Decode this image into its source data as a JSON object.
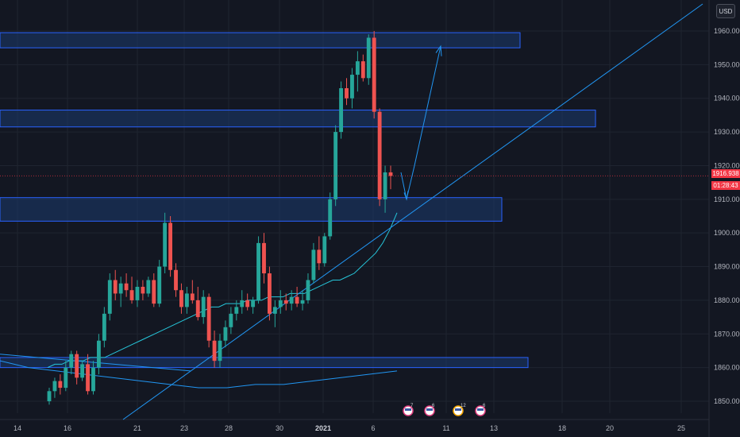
{
  "header": {
    "currency": "USD"
  },
  "price_axis": {
    "current_price": "1916.938",
    "countdown": "01:28:43"
  },
  "colors": {
    "background": "#131722",
    "up": "#26a69a",
    "down": "#ef5350",
    "zone_fill": "#1c3a6e",
    "zone_border": "#2962ff",
    "line": "#2196f3",
    "ma": "#26c6da",
    "price_tag": "#f23645"
  },
  "events": [
    {
      "label": "7",
      "icon": "us-flag-icon"
    },
    {
      "label": "6",
      "icon": "us-flag-icon"
    },
    {
      "label": "12",
      "icon": "us-flag-icon"
    },
    {
      "label": "6",
      "icon": "us-flag-icon"
    }
  ],
  "chart_data": {
    "type": "candlestick",
    "ylim": [
      1845,
      1965
    ],
    "yticks": [
      1850,
      1860,
      1870,
      1880,
      1890,
      1900,
      1910,
      1920,
      1930,
      1940,
      1950,
      1960
    ],
    "ytick_labels": [
      "1850.000",
      "1860.000",
      "1870.000",
      "1880.000",
      "1890.000",
      "1900.000",
      "1910.000",
      "1920.000",
      "1930.000",
      "1940.000",
      "1950.000",
      "1960.000"
    ],
    "xticks": [
      "14",
      "16",
      "21",
      "23",
      "28",
      "30",
      "2021",
      "6",
      "11",
      "13",
      "18",
      "20",
      "25"
    ],
    "grid": true,
    "zones": [
      {
        "y_low": 1955,
        "y_high": 1959.5
      },
      {
        "y_low": 1931.5,
        "y_high": 1936.5
      },
      {
        "y_low": 1903.5,
        "y_high": 1910.5
      },
      {
        "y_low": 1860,
        "y_high": 1863
      }
    ],
    "candles": [
      [
        1850,
        1854,
        1849,
        1853
      ],
      [
        1853,
        1857,
        1851,
        1856
      ],
      [
        1856,
        1858,
        1852,
        1854
      ],
      [
        1854,
        1862,
        1853,
        1860
      ],
      [
        1860,
        1865,
        1858,
        1864
      ],
      [
        1864,
        1865,
        1855,
        1857
      ],
      [
        1857,
        1862,
        1856,
        1861
      ],
      [
        1861,
        1864,
        1852,
        1853
      ],
      [
        1853,
        1862,
        1852,
        1860
      ],
      [
        1860,
        1870,
        1858,
        1868
      ],
      [
        1868,
        1878,
        1866,
        1876
      ],
      [
        1876,
        1888,
        1874,
        1886
      ],
      [
        1886,
        1889,
        1880,
        1882
      ],
      [
        1882,
        1887,
        1878,
        1885
      ],
      [
        1885,
        1888,
        1881,
        1883
      ],
      [
        1883,
        1887,
        1879,
        1880
      ],
      [
        1880,
        1886,
        1878,
        1884
      ],
      [
        1884,
        1886,
        1880,
        1882
      ],
      [
        1882,
        1887,
        1881,
        1886
      ],
      [
        1886,
        1888,
        1878,
        1879
      ],
      [
        1879,
        1892,
        1878,
        1890
      ],
      [
        1890,
        1906,
        1888,
        1903
      ],
      [
        1903,
        1905,
        1887,
        1889
      ],
      [
        1889,
        1891,
        1881,
        1883
      ],
      [
        1883,
        1885,
        1876,
        1878
      ],
      [
        1878,
        1884,
        1876,
        1882
      ],
      [
        1882,
        1886,
        1879,
        1880
      ],
      [
        1880,
        1884,
        1874,
        1875
      ],
      [
        1875,
        1883,
        1873,
        1881
      ],
      [
        1881,
        1882,
        1866,
        1868
      ],
      [
        1868,
        1871,
        1860,
        1862
      ],
      [
        1862,
        1870,
        1860,
        1868
      ],
      [
        1868,
        1874,
        1866,
        1872
      ],
      [
        1872,
        1878,
        1870,
        1876
      ],
      [
        1876,
        1880,
        1874,
        1878
      ],
      [
        1878,
        1883,
        1876,
        1880
      ],
      [
        1880,
        1882,
        1877,
        1878
      ],
      [
        1878,
        1881,
        1876,
        1880
      ],
      [
        1880,
        1899,
        1879,
        1897
      ],
      [
        1897,
        1900,
        1885,
        1888
      ],
      [
        1888,
        1890,
        1874,
        1876
      ],
      [
        1876,
        1880,
        1872,
        1878
      ],
      [
        1878,
        1883,
        1876,
        1880
      ],
      [
        1880,
        1882,
        1877,
        1879
      ],
      [
        1879,
        1883,
        1877,
        1881
      ],
      [
        1881,
        1884,
        1878,
        1879
      ],
      [
        1879,
        1883,
        1877,
        1880
      ],
      [
        1880,
        1888,
        1879,
        1886
      ],
      [
        1886,
        1897,
        1885,
        1895
      ],
      [
        1895,
        1899,
        1889,
        1891
      ],
      [
        1891,
        1900,
        1890,
        1899
      ],
      [
        1899,
        1912,
        1898,
        1910
      ],
      [
        1910,
        1932,
        1908,
        1930
      ],
      [
        1930,
        1945,
        1928,
        1943
      ],
      [
        1943,
        1946,
        1938,
        1940
      ],
      [
        1940,
        1949,
        1937,
        1947
      ],
      [
        1947,
        1954,
        1942,
        1951
      ],
      [
        1951,
        1953,
        1945,
        1946
      ],
      [
        1946,
        1959,
        1944,
        1958
      ],
      [
        1958,
        1960,
        1934,
        1936
      ],
      [
        1936,
        1937,
        1908,
        1910
      ],
      [
        1910,
        1920,
        1906,
        1918
      ],
      [
        1918,
        1920,
        1913,
        1916.938
      ]
    ],
    "ma": [
      1860,
      1861,
      1861,
      1862,
      1862,
      1862,
      1863,
      1863,
      1863,
      1864,
      1865,
      1866,
      1867,
      1868,
      1869,
      1870,
      1871,
      1872,
      1873,
      1874,
      1875,
      1876,
      1877,
      1878,
      1878,
      1879,
      1879,
      1879,
      1880,
      1880,
      1880,
      1881,
      1881,
      1881,
      1882,
      1882,
      1882,
      1883,
      1884,
      1885,
      1886,
      1886,
      1887,
      1888,
      1890,
      1892,
      1894,
      1897,
      1901,
      1906
    ],
    "ma2": [
      1862,
      1860,
      1859,
      1858,
      1857,
      1856,
      1855,
      1854,
      1854,
      1855,
      1855,
      1856,
      1857,
      1858,
      1859
    ]
  }
}
